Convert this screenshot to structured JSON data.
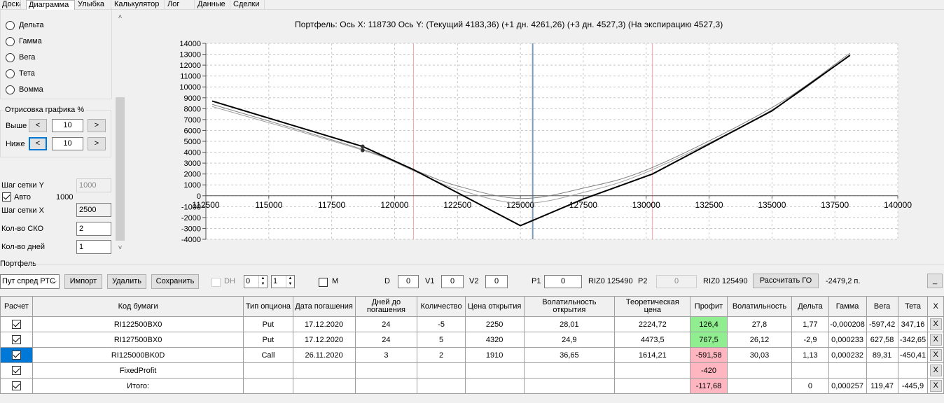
{
  "tabs": [
    {
      "label": "Доска",
      "active": false
    },
    {
      "label": "Диаграмма",
      "active": true
    },
    {
      "label": "Улыбка",
      "active": false
    },
    {
      "label": "Калькулятор",
      "active": false
    },
    {
      "label": "Лог",
      "active": false
    },
    {
      "label": "Данные",
      "active": false
    },
    {
      "label": "Сделки",
      "active": false
    }
  ],
  "left_panel": {
    "radios": [
      "Дельта",
      "Гамма",
      "Вега",
      "Тета",
      "Вомма"
    ],
    "render_group_title": "Отрисовка графика %",
    "above_label": "Выше",
    "below_label": "Ниже",
    "above_value": "10",
    "below_value": "10",
    "btn_less": "<",
    "btn_more": ">",
    "grid_y_label": "Шаг сетки Y",
    "grid_y_value": "1000",
    "auto_label": "Авто",
    "auto_value": "1000",
    "grid_x_label": "Шаг сетки X",
    "grid_x_value": "2500",
    "sko_label": "Кол-во СКО",
    "sko_value": "2",
    "days_label": "Кол-во дней",
    "days_value": "1"
  },
  "chart_title": "Портфель: Ось X: 118730 Ось Y:  (Текущий 4183,36)  (+1 дн. 4261,26)  (+3 дн. 4527,3)  (На экспирацию 4527,3)",
  "chart_data": {
    "type": "line",
    "xlim": [
      112500,
      140000
    ],
    "ylim": [
      -4000,
      14000
    ],
    "x_ticks": [
      112500,
      115000,
      117500,
      120000,
      122500,
      125000,
      127500,
      130000,
      132500,
      135000,
      137500,
      140000
    ],
    "y_ticks": [
      -4000,
      -3000,
      -2000,
      -1000,
      0,
      1000,
      2000,
      3000,
      4000,
      5000,
      6000,
      7000,
      8000,
      9000,
      10000,
      11000,
      12000,
      13000,
      14000
    ],
    "vertical_lines": [
      {
        "x": 120750,
        "color": "#f4a0a0"
      },
      {
        "x": 125490,
        "color": "#7f9bb5"
      },
      {
        "x": 130250,
        "color": "#f4a0a0"
      }
    ],
    "markers": [
      {
        "x": 118730,
        "y": 4527
      },
      {
        "x": 118730,
        "y": 4183
      }
    ],
    "series": [
      {
        "color": "#000000",
        "width": 2,
        "x": [
          112750,
          118730,
          120750,
          125000,
          127500,
          130250,
          135000,
          138100
        ],
        "y": [
          8700,
          4527,
          2400,
          -2750,
          -300,
          2000,
          7800,
          12900
        ]
      },
      {
        "color": "#808080",
        "width": 1,
        "x": [
          112750,
          118730,
          120750,
          122500,
          125000,
          127500,
          130250,
          135000,
          138100
        ],
        "y": [
          8400,
          4261,
          2400,
          900,
          -250,
          700,
          2600,
          8100,
          13100
        ]
      },
      {
        "color": "#a0a0a0",
        "width": 1,
        "x": [
          112750,
          118730,
          120750,
          122500,
          125000,
          127500,
          130250,
          135000,
          138100
        ],
        "y": [
          8200,
          4183,
          2300,
          600,
          -700,
          300,
          2400,
          7900,
          12950
        ]
      }
    ]
  },
  "portfolio": {
    "title": "Портфель",
    "strategy": "Пут спред РТС",
    "import_btn": "Импорт",
    "delete_btn": "Удалить",
    "save_btn": "Сохранить",
    "dh_label": "DH",
    "spin1": "0",
    "spin2": "1",
    "m_label": "M",
    "d_label": "D",
    "d_value": "0",
    "v1_label": "V1",
    "v1_value": "0",
    "v2_label": "V2",
    "v2_value": "0",
    "p1_label": "P1",
    "p1_value": "0",
    "p1_ticker": "RIZ0 125490",
    "p2_label": "P2",
    "p2_value": "0",
    "p2_ticker": "RIZ0 125490",
    "calc_btn": "Рассчитать ГО",
    "go_value": "-2479,2 п.",
    "minimize_btn": "_"
  },
  "table": {
    "headers": [
      "Расчет",
      "Код бумаги",
      "Тип опциона",
      "Дата погашения",
      "Дней до погашения",
      "Количество",
      "Цена открытия",
      "Волатильность открытия",
      "Теоретическая цена",
      "Профит",
      "Волатильность",
      "Дельта",
      "Гамма",
      "Вега",
      "Тета",
      "X"
    ],
    "rows": [
      {
        "check": true,
        "selected": false,
        "code": "RI122500BX0",
        "type": "Put",
        "date": "17.12.2020",
        "days": "24",
        "qty": "-5",
        "open_price": "2250",
        "open_vol": "28,01",
        "theor": "2224,72",
        "profit": "126,4",
        "profit_color": "green",
        "vol": "27,8",
        "delta": "1,77",
        "gamma": "-0,000208",
        "vega": "-597,42",
        "theta": "347,16",
        "x": "X"
      },
      {
        "check": true,
        "selected": false,
        "code": "RI127500BX0",
        "type": "Put",
        "date": "17.12.2020",
        "days": "24",
        "qty": "5",
        "open_price": "4320",
        "open_vol": "24,9",
        "theor": "4473,5",
        "profit": "767,5",
        "profit_color": "green",
        "vol": "26,12",
        "delta": "-2,9",
        "gamma": "0,000233",
        "vega": "627,58",
        "theta": "-342,65",
        "x": "X"
      },
      {
        "check": true,
        "selected": true,
        "code": "RI125000BK0D",
        "type": "Call",
        "date": "26.11.2020",
        "days": "3",
        "qty": "2",
        "open_price": "1910",
        "open_vol": "36,65",
        "theor": "1614,21",
        "profit": "-591,58",
        "profit_color": "pink",
        "vol": "30,03",
        "delta": "1,13",
        "gamma": "0,000232",
        "vega": "89,31",
        "theta": "-450,41",
        "x": "X"
      },
      {
        "check": true,
        "selected": false,
        "code": "FixedProfit",
        "type": "",
        "date": "",
        "days": "",
        "qty": "",
        "open_price": "",
        "open_vol": "",
        "theor": "",
        "profit": "-420",
        "profit_color": "pink",
        "vol": "",
        "delta": "",
        "gamma": "",
        "vega": "",
        "theta": "",
        "x": "X"
      },
      {
        "check": true,
        "selected": false,
        "code": "Итого:",
        "type": "",
        "date": "",
        "days": "",
        "qty": "",
        "open_price": "",
        "open_vol": "",
        "theor": "",
        "profit": "-117,68",
        "profit_color": "pink",
        "vol": "",
        "delta": "0",
        "gamma": "0,000257",
        "vega": "119,47",
        "theta": "-445,9",
        "x": "X"
      }
    ]
  }
}
